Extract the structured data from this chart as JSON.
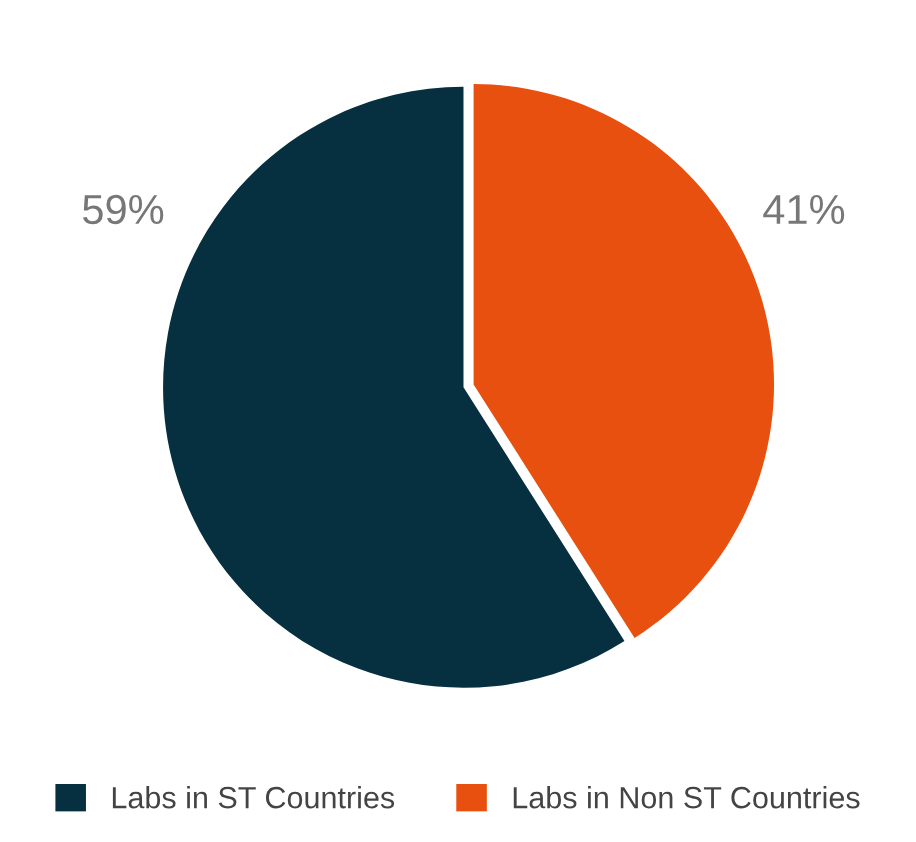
{
  "chart_data": {
    "type": "pie",
    "categories": [
      "Labs in ST Countries",
      "Labs in Non ST Countries"
    ],
    "values": [
      59,
      41
    ],
    "colors": [
      "#06303f",
      "#e8500f"
    ],
    "value_labels": [
      "59%",
      "41%"
    ],
    "legend": "bottom"
  }
}
